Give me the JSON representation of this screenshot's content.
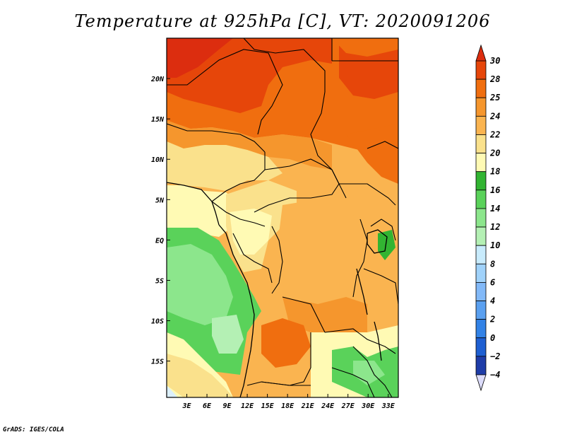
{
  "title": "Temperature at 925hPa [C], VT: 2020091206",
  "credit": "GrADS: IGES/COLA",
  "map": {
    "lon_range": [
      0,
      34.5
    ],
    "lat_range": [
      -19.5,
      25
    ],
    "lon_ticks": [
      3,
      6,
      9,
      12,
      15,
      18,
      21,
      24,
      27,
      30,
      33
    ],
    "lon_labels": [
      "3E",
      "6E",
      "9E",
      "12E",
      "15E",
      "18E",
      "21E",
      "24E",
      "27E",
      "30E",
      "33E"
    ],
    "lat_ticks": [
      20,
      15,
      10,
      5,
      0,
      -5,
      -10,
      -15
    ],
    "lat_labels": [
      "20N",
      "15N",
      "10N",
      "5N",
      "EQ",
      "5S",
      "10S",
      "15S"
    ]
  },
  "colorbar": {
    "levels": [
      -4,
      -2,
      0,
      2,
      4,
      6,
      8,
      10,
      12,
      14,
      16,
      18,
      20,
      22,
      24,
      25,
      28,
      30
    ],
    "labels": [
      "30",
      "28",
      "25",
      "24",
      "22",
      "20",
      "18",
      "16",
      "14",
      "12",
      "10",
      "8",
      "6",
      "4",
      "2",
      "0",
      "−2",
      "−4"
    ],
    "colors": [
      "#1c0a78",
      "#1e3ca8",
      "#1e5fd2",
      "#3282e6",
      "#5aa0f0",
      "#82b9f8",
      "#a0d2fa",
      "#c8ebfc",
      "#b4f0b4",
      "#8ce68c",
      "#5ad25a",
      "#32b432",
      "#fffab4",
      "#fae18c",
      "#fab450",
      "#f5962d",
      "#f06e0f",
      "#e6460a",
      "#dc2d0f"
    ],
    "under_color": "#dcdcfa",
    "over_color": "#dc2d0f"
  }
}
